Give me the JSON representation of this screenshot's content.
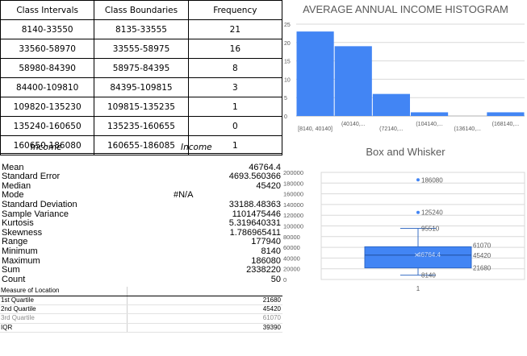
{
  "freq_table": {
    "headers": [
      "Class Intervals",
      "Class Boundaries",
      "Frequency"
    ],
    "rows": [
      [
        "8140-33550",
        "8135-33555",
        "21"
      ],
      [
        "33560-58970",
        "33555-58975",
        "16"
      ],
      [
        "58980-84390",
        "58975-84395",
        "8"
      ],
      [
        "84400-109810",
        "84395-109815",
        "3"
      ],
      [
        "109820-135230",
        "109815-135235",
        "1"
      ],
      [
        "135240-160650",
        "135235-160655",
        "0"
      ],
      [
        "160650-186080",
        "160655-186085",
        "1"
      ]
    ]
  },
  "stats": {
    "headers": [
      "Income",
      "Income"
    ],
    "rows": [
      {
        "label": "",
        "value": ""
      },
      {
        "label": "Mean",
        "value": "46764.4"
      },
      {
        "label": "Standard Error",
        "value": "4693.560366"
      },
      {
        "label": "Median",
        "value": "45420"
      },
      {
        "label": "Mode",
        "value": "#N/A"
      },
      {
        "label": "Standard Deviation",
        "value": "33188.48363"
      },
      {
        "label": "Sample Variance",
        "value": "1101475446"
      },
      {
        "label": "Kurtosis",
        "value": "5.319640331"
      },
      {
        "label": "Skewness",
        "value": "1.786965411"
      },
      {
        "label": "Range",
        "value": "177940"
      },
      {
        "label": "Minimum",
        "value": "8140"
      },
      {
        "label": "Maximum",
        "value": "186080"
      },
      {
        "label": "Sum",
        "value": "2338220"
      },
      {
        "label": "Count",
        "value": "50"
      }
    ]
  },
  "location": {
    "title": "Measure of Location",
    "rows": [
      {
        "label": "1st Quartile",
        "value": "21680"
      },
      {
        "label": "2nd Quartile",
        "value": "45420"
      },
      {
        "label": "3rd Quartile",
        "value": "61070"
      },
      {
        "label": "IQR",
        "value": "39390"
      }
    ]
  },
  "colors": {
    "bar": "#4285f4",
    "axis_text": "#595959",
    "grid": "#d9d9d9"
  },
  "chart_data": [
    {
      "type": "bar",
      "title": "AVERAGE ANNUAL INCOME HISTOGRAM",
      "categories": [
        "[8140, 40140]",
        "(40140,...",
        "(72140,...",
        "(104140,...",
        "(136140,...",
        "(168140,..."
      ],
      "values": [
        23,
        19,
        6,
        1,
        0,
        1
      ],
      "ylim": [
        0,
        25
      ],
      "yticks": [
        0,
        5,
        10,
        15,
        20,
        25
      ],
      "grid": true
    },
    {
      "type": "box",
      "title": "Box and Whisker",
      "categories": [
        "1"
      ],
      "min": 8140,
      "q1": 21680,
      "median": 45420,
      "q3": 61070,
      "max": 95510,
      "mean": 46764.4,
      "outliers": [
        125240,
        186080
      ],
      "labels": [
        "186080",
        "125240",
        "95510",
        "61070",
        "45420",
        "46764.4",
        "21680",
        "8140"
      ],
      "ylim": [
        0,
        200000
      ],
      "yticks": [
        0,
        20000,
        40000,
        60000,
        80000,
        100000,
        120000,
        140000,
        160000,
        180000,
        200000
      ],
      "grid": true
    }
  ]
}
